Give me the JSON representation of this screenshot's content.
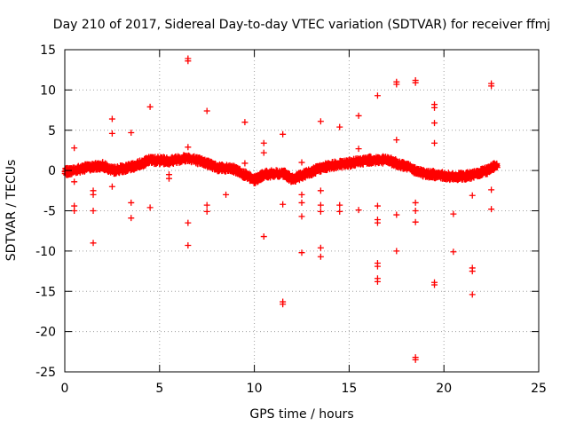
{
  "chart_data": {
    "type": "scatter",
    "title": "Day 210 of 2017, Sidereal Day-to-day VTEC variation (SDTVAR) for receiver ffmj",
    "xlabel": "GPS time / hours",
    "ylabel": "SDTVAR / TECUs",
    "xlim": [
      0,
      25
    ],
    "ylim": [
      -25,
      15
    ],
    "xticks": [
      0,
      5,
      10,
      15,
      20,
      25
    ],
    "yticks": [
      -25,
      -20,
      -15,
      -10,
      -5,
      0,
      5,
      10,
      15
    ],
    "xtick_labels": [
      "0",
      "5",
      "10",
      "15",
      "20",
      "25"
    ],
    "ytick_labels": [
      "-25",
      "-20",
      "-15",
      "-10",
      "-5",
      "0",
      "5",
      "10",
      "15"
    ],
    "grid": true,
    "marker": "+",
    "color": "#ff0000",
    "band": {
      "x_start": 0.0,
      "x_end": 22.8,
      "step": 0.02,
      "spread": 0.45,
      "profile": [
        [
          0.0,
          -0.2
        ],
        [
          1.0,
          0.3
        ],
        [
          2.0,
          0.6
        ],
        [
          2.5,
          0.0
        ],
        [
          3.5,
          0.4
        ],
        [
          4.5,
          1.3
        ],
        [
          5.5,
          1.2
        ],
        [
          6.5,
          1.6
        ],
        [
          7.5,
          0.9
        ],
        [
          8.0,
          0.4
        ],
        [
          9.0,
          0.1
        ],
        [
          10.0,
          -1.2
        ],
        [
          10.5,
          -0.5
        ],
        [
          11.5,
          -0.3
        ],
        [
          12.0,
          -1.1
        ],
        [
          12.5,
          -0.6
        ],
        [
          13.5,
          0.3
        ],
        [
          14.0,
          0.6
        ],
        [
          15.0,
          0.9
        ],
        [
          16.0,
          1.3
        ],
        [
          17.0,
          1.3
        ],
        [
          18.0,
          0.5
        ],
        [
          19.0,
          -0.4
        ],
        [
          19.5,
          -0.5
        ],
        [
          20.5,
          -0.8
        ],
        [
          21.5,
          -0.6
        ],
        [
          22.3,
          0.0
        ],
        [
          22.8,
          0.8
        ]
      ]
    },
    "outliers": [
      {
        "x": 0.5,
        "y": 2.8
      },
      {
        "x": 0.5,
        "y": -1.4
      },
      {
        "x": 0.5,
        "y": -4.4
      },
      {
        "x": 0.5,
        "y": -5.0
      },
      {
        "x": 1.5,
        "y": -2.5
      },
      {
        "x": 1.5,
        "y": -3.0
      },
      {
        "x": 1.5,
        "y": -5.0
      },
      {
        "x": 1.5,
        "y": -9.0
      },
      {
        "x": 2.5,
        "y": 6.4
      },
      {
        "x": 2.5,
        "y": 4.6
      },
      {
        "x": 2.5,
        "y": -2.0
      },
      {
        "x": 3.5,
        "y": 4.7
      },
      {
        "x": 3.5,
        "y": -4.0
      },
      {
        "x": 3.5,
        "y": -5.9
      },
      {
        "x": 4.5,
        "y": 7.9
      },
      {
        "x": 4.5,
        "y": -4.6
      },
      {
        "x": 5.5,
        "y": -0.5
      },
      {
        "x": 5.5,
        "y": -1.0
      },
      {
        "x": 6.5,
        "y": 13.9
      },
      {
        "x": 6.5,
        "y": 13.6
      },
      {
        "x": 6.5,
        "y": 2.9
      },
      {
        "x": 6.5,
        "y": -6.5
      },
      {
        "x": 6.5,
        "y": -9.3
      },
      {
        "x": 7.5,
        "y": 7.4
      },
      {
        "x": 7.5,
        "y": -4.3
      },
      {
        "x": 7.5,
        "y": -5.1
      },
      {
        "x": 8.5,
        "y": -3.0
      },
      {
        "x": 9.5,
        "y": 6.0
      },
      {
        "x": 9.5,
        "y": 0.9
      },
      {
        "x": 10.5,
        "y": 3.4
      },
      {
        "x": 10.5,
        "y": 2.2
      },
      {
        "x": 10.5,
        "y": -8.2
      },
      {
        "x": 11.5,
        "y": 4.5
      },
      {
        "x": 11.5,
        "y": -4.2
      },
      {
        "x": 11.5,
        "y": -16.3
      },
      {
        "x": 11.5,
        "y": -16.6
      },
      {
        "x": 12.5,
        "y": 1.0
      },
      {
        "x": 12.5,
        "y": -3.0
      },
      {
        "x": 12.5,
        "y": -4.0
      },
      {
        "x": 12.5,
        "y": -5.7
      },
      {
        "x": 12.5,
        "y": -10.2
      },
      {
        "x": 13.5,
        "y": 6.1
      },
      {
        "x": 13.5,
        "y": -2.5
      },
      {
        "x": 13.5,
        "y": -4.3
      },
      {
        "x": 13.5,
        "y": -5.1
      },
      {
        "x": 13.5,
        "y": -9.6
      },
      {
        "x": 13.5,
        "y": -10.7
      },
      {
        "x": 14.5,
        "y": 5.4
      },
      {
        "x": 14.5,
        "y": -4.3
      },
      {
        "x": 14.5,
        "y": -5.1
      },
      {
        "x": 15.5,
        "y": 6.8
      },
      {
        "x": 15.5,
        "y": 2.7
      },
      {
        "x": 15.5,
        "y": -4.9
      },
      {
        "x": 16.5,
        "y": 9.3
      },
      {
        "x": 16.5,
        "y": -4.4
      },
      {
        "x": 16.5,
        "y": -6.1
      },
      {
        "x": 16.5,
        "y": -6.5
      },
      {
        "x": 16.5,
        "y": -11.5
      },
      {
        "x": 16.5,
        "y": -11.9
      },
      {
        "x": 16.5,
        "y": -13.4
      },
      {
        "x": 16.5,
        "y": -13.8
      },
      {
        "x": 17.5,
        "y": 11.0
      },
      {
        "x": 17.5,
        "y": 10.7
      },
      {
        "x": 17.5,
        "y": 3.8
      },
      {
        "x": 17.5,
        "y": -5.5
      },
      {
        "x": 17.5,
        "y": -10.0
      },
      {
        "x": 18.5,
        "y": 11.2
      },
      {
        "x": 18.5,
        "y": 10.9
      },
      {
        "x": 18.5,
        "y": -4.0
      },
      {
        "x": 18.5,
        "y": -5.0
      },
      {
        "x": 18.5,
        "y": -6.4
      },
      {
        "x": 18.5,
        "y": -23.2
      },
      {
        "x": 18.5,
        "y": -23.5
      },
      {
        "x": 19.5,
        "y": 8.2
      },
      {
        "x": 19.5,
        "y": 7.8
      },
      {
        "x": 19.5,
        "y": 5.9
      },
      {
        "x": 19.5,
        "y": 3.4
      },
      {
        "x": 19.5,
        "y": -13.9
      },
      {
        "x": 19.5,
        "y": -14.2
      },
      {
        "x": 20.5,
        "y": -5.4
      },
      {
        "x": 20.5,
        "y": -10.1
      },
      {
        "x": 21.5,
        "y": -3.1
      },
      {
        "x": 21.5,
        "y": -12.1
      },
      {
        "x": 21.5,
        "y": -12.5
      },
      {
        "x": 21.5,
        "y": -15.4
      },
      {
        "x": 22.5,
        "y": 10.8
      },
      {
        "x": 22.5,
        "y": 10.5
      },
      {
        "x": 22.5,
        "y": -2.4
      },
      {
        "x": 22.5,
        "y": -4.8
      }
    ]
  }
}
